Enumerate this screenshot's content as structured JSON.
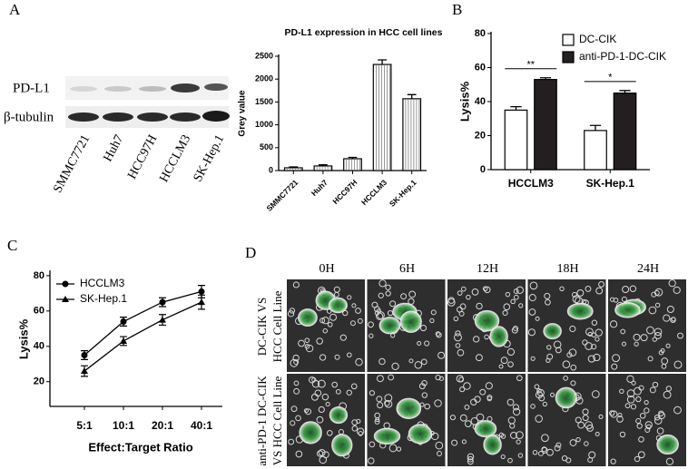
{
  "panels": [
    "A",
    "B",
    "C",
    "D"
  ],
  "blot": {
    "rows": [
      "PD-L1",
      "β-tubulin"
    ],
    "lanes": [
      "SMMC7721",
      "Huh7",
      "HCC97H",
      "HCCLM3",
      "SK-Hep.1"
    ]
  },
  "micrographs": {
    "times": [
      "0H",
      "6H",
      "12H",
      "18H",
      "24H"
    ],
    "rows": [
      [
        "DC-CIK VS",
        "HCC Cell Line"
      ],
      [
        "anti-PD-1 DC-CIK",
        "VS HCC Cell Line"
      ]
    ]
  },
  "chart_data": [
    {
      "type": "bar",
      "title": "PD-L1 expression  in HCC cell lines",
      "y_label": "Grey value",
      "categories": [
        "SMMC7721",
        "Huh7",
        "HCC97H",
        "HCCLM3",
        "SK-Hep.1"
      ],
      "series": [
        {
          "values": [
            60,
            100,
            258,
            2320,
            1570
          ],
          "errors": [
            20,
            25,
            30,
            100,
            90
          ],
          "color": "#ffffff"
        }
      ],
      "ylim": [
        0,
        2500
      ],
      "yticks": [
        0,
        500,
        1000,
        1500,
        2000,
        2500
      ]
    },
    {
      "type": "bar",
      "y_label": "Lysis%",
      "categories": [
        "HCCLM3",
        "SK-Hep.1"
      ],
      "series": [
        {
          "name": "DC-CIK",
          "color": "#ffffff",
          "values": [
            35,
            23
          ],
          "errors": [
            2,
            3
          ]
        },
        {
          "name": "anti-PD-1-DC-CIK",
          "color": "#231f20",
          "values": [
            53,
            45
          ],
          "errors": [
            1,
            1.5
          ]
        }
      ],
      "annotations": [
        "**",
        "*"
      ],
      "ylim": [
        0,
        80
      ],
      "yticks": [
        0,
        20,
        40,
        60,
        80
      ]
    },
    {
      "type": "line",
      "x_label": "Effect:Target Ratio",
      "y_label": "Lysis%",
      "categories": [
        "5:1",
        "10:1",
        "20:1",
        "40:1"
      ],
      "series": [
        {
          "name": "HCCLM3",
          "marker": "circle",
          "color": "#000000",
          "values": [
            35,
            54,
            65,
            71
          ],
          "errors": [
            2.5,
            2.5,
            2.5,
            3.5
          ]
        },
        {
          "name": "SK-Hep.1",
          "marker": "triangle",
          "color": "#000000",
          "values": [
            26,
            43,
            55,
            65
          ],
          "errors": [
            3,
            2.5,
            3,
            4
          ]
        }
      ],
      "ylim": [
        6,
        82
      ],
      "yticks": [
        20,
        40,
        60,
        80
      ]
    }
  ]
}
